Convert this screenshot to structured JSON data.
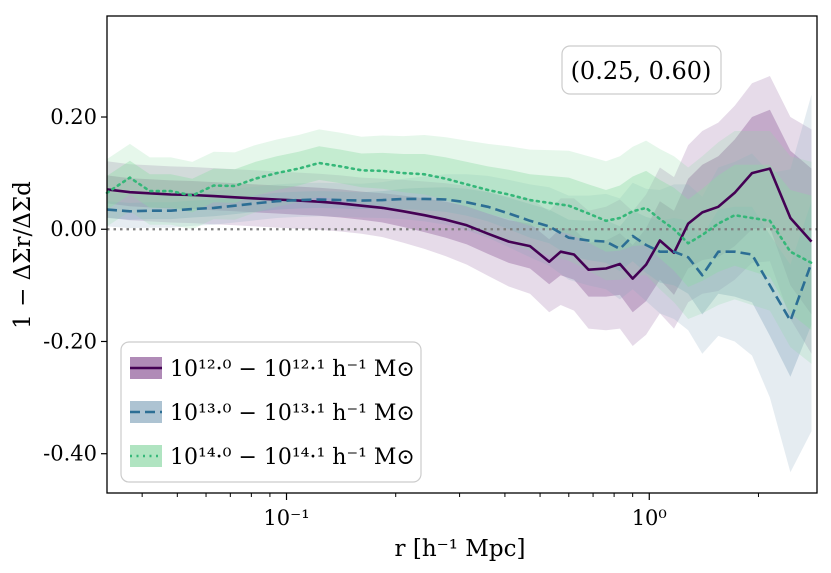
{
  "chart_data": {
    "type": "line",
    "xscale": "log",
    "xlim": [
      0.032,
      2.9
    ],
    "ylim": [
      -0.47,
      0.38
    ],
    "xlabel": "r [h⁻¹ Mpc]",
    "ylabel": "1 − ΔΣr/ΔΣd",
    "yticks": [
      {
        "value": 0.2,
        "label": "0.20"
      },
      {
        "value": 0.0,
        "label": "0.00"
      },
      {
        "value": -0.2,
        "label": "-0.20"
      },
      {
        "value": -0.4,
        "label": "-0.40"
      }
    ],
    "xticks": [
      {
        "value": 0.1,
        "label": "10⁻¹"
      },
      {
        "value": 1.0,
        "label": "10⁰"
      }
    ],
    "reference_line": 0.0,
    "annotation": "(0.25, 0.60)",
    "legend_position": "lower-left",
    "series": [
      {
        "name": "10^12.0 − 10^12.1 h⁻¹ M⊙",
        "legend_label": "10¹²·⁰ − 10¹²·¹ h⁻¹ M⊙",
        "color": "#440154",
        "band_color": "#8e5a99",
        "linestyle": "solid",
        "x": [
          0.032,
          0.037,
          0.042,
          0.048,
          0.055,
          0.063,
          0.072,
          0.082,
          0.094,
          0.108,
          0.123,
          0.141,
          0.161,
          0.184,
          0.21,
          0.24,
          0.275,
          0.314,
          0.359,
          0.41,
          0.469,
          0.53,
          0.57,
          0.62,
          0.68,
          0.76,
          0.83,
          0.9,
          0.98,
          1.07,
          1.17,
          1.28,
          1.4,
          1.55,
          1.72,
          1.92,
          2.15,
          2.45,
          2.8
        ],
        "values": [
          0.071,
          0.066,
          0.064,
          0.062,
          0.061,
          0.059,
          0.057,
          0.055,
          0.053,
          0.051,
          0.049,
          0.046,
          0.042,
          0.038,
          0.032,
          0.025,
          0.017,
          0.007,
          -0.008,
          -0.022,
          -0.03,
          -0.058,
          -0.04,
          -0.045,
          -0.072,
          -0.07,
          -0.062,
          -0.088,
          -0.063,
          -0.02,
          -0.042,
          0.01,
          0.03,
          0.04,
          0.065,
          0.1,
          0.108,
          0.02,
          -0.022
        ],
        "band1": [
          0.025,
          0.025,
          0.025,
          0.025,
          0.025,
          0.025,
          0.025,
          0.025,
          0.025,
          0.025,
          0.025,
          0.025,
          0.025,
          0.026,
          0.028,
          0.03,
          0.032,
          0.034,
          0.036,
          0.038,
          0.04,
          0.04,
          0.042,
          0.045,
          0.048,
          0.05,
          0.055,
          0.06,
          0.065,
          0.07,
          0.075,
          0.08,
          0.085,
          0.09,
          0.095,
          0.1,
          0.105,
          0.12,
          0.13
        ],
        "band2": [
          0.05,
          0.05,
          0.05,
          0.05,
          0.05,
          0.05,
          0.05,
          0.05,
          0.05,
          0.05,
          0.05,
          0.05,
          0.05,
          0.052,
          0.056,
          0.06,
          0.065,
          0.07,
          0.075,
          0.08,
          0.085,
          0.09,
          0.095,
          0.1,
          0.105,
          0.11,
          0.115,
          0.12,
          0.125,
          0.13,
          0.135,
          0.14,
          0.145,
          0.15,
          0.155,
          0.16,
          0.165,
          0.18,
          0.2
        ]
      },
      {
        "name": "10^13.0 − 10^13.1 h⁻¹ M⊙",
        "legend_label": "10¹³·⁰ − 10¹³·¹ h⁻¹ M⊙",
        "color": "#2c6e94",
        "band_color": "#8aa9bf",
        "linestyle": "dashed",
        "x": [
          0.032,
          0.037,
          0.042,
          0.048,
          0.055,
          0.063,
          0.072,
          0.082,
          0.094,
          0.108,
          0.123,
          0.141,
          0.161,
          0.184,
          0.21,
          0.24,
          0.275,
          0.314,
          0.359,
          0.41,
          0.469,
          0.53,
          0.6,
          0.68,
          0.76,
          0.83,
          0.9,
          0.98,
          1.07,
          1.17,
          1.28,
          1.4,
          1.55,
          1.72,
          1.92,
          2.15,
          2.45,
          2.8
        ],
        "values": [
          0.035,
          0.032,
          0.033,
          0.033,
          0.036,
          0.038,
          0.042,
          0.046,
          0.05,
          0.052,
          0.053,
          0.052,
          0.051,
          0.052,
          0.054,
          0.054,
          0.053,
          0.048,
          0.04,
          0.028,
          0.015,
          0.005,
          -0.015,
          -0.02,
          -0.022,
          -0.035,
          -0.012,
          -0.028,
          -0.04,
          -0.04,
          -0.05,
          -0.082,
          -0.04,
          -0.04,
          -0.045,
          -0.1,
          -0.163,
          -0.06
        ],
        "band1": [
          0.015,
          0.015,
          0.015,
          0.015,
          0.015,
          0.015,
          0.015,
          0.015,
          0.015,
          0.015,
          0.015,
          0.015,
          0.015,
          0.016,
          0.018,
          0.02,
          0.022,
          0.024,
          0.026,
          0.028,
          0.03,
          0.03,
          0.032,
          0.035,
          0.038,
          0.04,
          0.045,
          0.05,
          0.055,
          0.06,
          0.065,
          0.07,
          0.075,
          0.08,
          0.085,
          0.09,
          0.1,
          0.11
        ],
        "band2": [
          0.03,
          0.03,
          0.03,
          0.03,
          0.03,
          0.03,
          0.03,
          0.03,
          0.03,
          0.03,
          0.03,
          0.03,
          0.03,
          0.032,
          0.036,
          0.04,
          0.045,
          0.05,
          0.055,
          0.06,
          0.065,
          0.07,
          0.075,
          0.08,
          0.085,
          0.09,
          0.095,
          0.1,
          0.11,
          0.12,
          0.13,
          0.14,
          0.15,
          0.16,
          0.18,
          0.2,
          0.27,
          0.3
        ]
      },
      {
        "name": "10^14.0 − 10^14.1 h⁻¹ M⊙",
        "legend_label": "10¹⁴·⁰ − 10¹⁴·¹ h⁻¹ M⊙",
        "color": "#35b779",
        "band_color": "#8fd9a6",
        "linestyle": "dotted",
        "x": [
          0.032,
          0.037,
          0.042,
          0.048,
          0.055,
          0.063,
          0.072,
          0.082,
          0.094,
          0.108,
          0.123,
          0.141,
          0.161,
          0.184,
          0.21,
          0.24,
          0.275,
          0.314,
          0.359,
          0.41,
          0.469,
          0.53,
          0.6,
          0.68,
          0.76,
          0.83,
          0.9,
          0.98,
          1.07,
          1.17,
          1.28,
          1.4,
          1.55,
          1.72,
          1.92,
          2.15,
          2.45,
          2.8
        ],
        "values": [
          0.065,
          0.092,
          0.068,
          0.068,
          0.06,
          0.078,
          0.077,
          0.09,
          0.1,
          0.108,
          0.118,
          0.112,
          0.105,
          0.104,
          0.1,
          0.098,
          0.09,
          0.08,
          0.07,
          0.062,
          0.052,
          0.047,
          0.042,
          0.028,
          0.015,
          0.02,
          0.032,
          0.038,
          0.018,
          0.0,
          -0.025,
          -0.01,
          0.01,
          0.025,
          0.02,
          0.015,
          -0.04,
          -0.06
        ],
        "band1": [
          0.03,
          0.03,
          0.03,
          0.03,
          0.03,
          0.03,
          0.03,
          0.03,
          0.03,
          0.03,
          0.03,
          0.03,
          0.03,
          0.032,
          0.034,
          0.036,
          0.038,
          0.04,
          0.042,
          0.044,
          0.046,
          0.048,
          0.05,
          0.052,
          0.055,
          0.058,
          0.062,
          0.066,
          0.07,
          0.074,
          0.078,
          0.082,
          0.086,
          0.09,
          0.095,
          0.1,
          0.11,
          0.12
        ],
        "band2": [
          0.06,
          0.06,
          0.06,
          0.06,
          0.06,
          0.06,
          0.06,
          0.06,
          0.06,
          0.06,
          0.06,
          0.06,
          0.06,
          0.063,
          0.066,
          0.07,
          0.074,
          0.078,
          0.082,
          0.086,
          0.09,
          0.094,
          0.098,
          0.102,
          0.106,
          0.11,
          0.115,
          0.12,
          0.125,
          0.13,
          0.135,
          0.14,
          0.145,
          0.15,
          0.155,
          0.16,
          0.17,
          0.18
        ]
      }
    ]
  }
}
